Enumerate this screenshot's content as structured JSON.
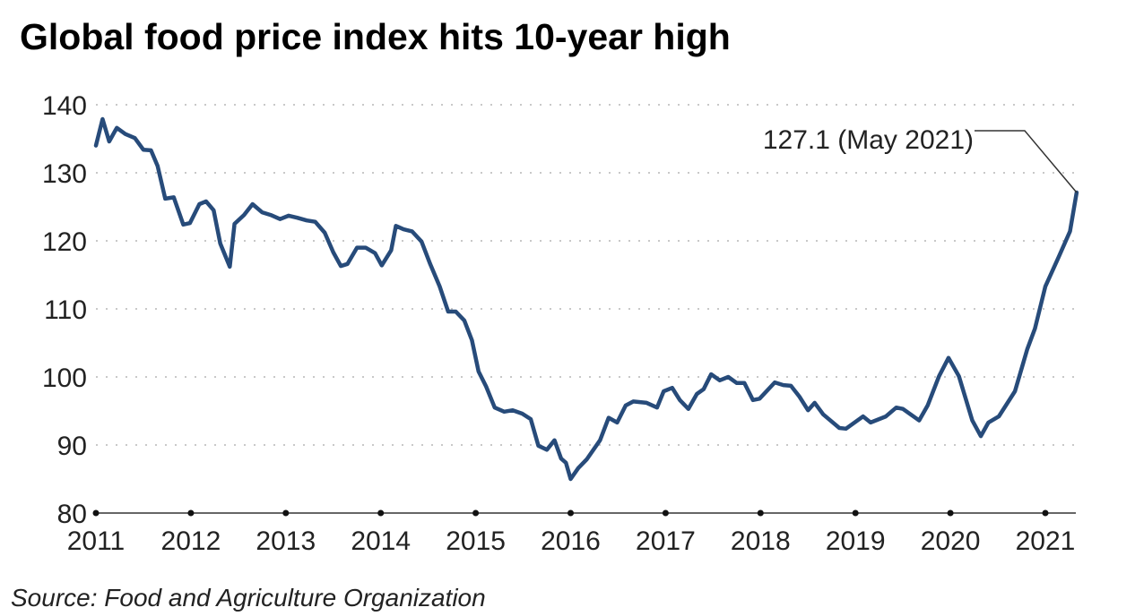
{
  "chart_data": {
    "type": "line",
    "title": "Global food price index hits 10-year high",
    "xlabel": "",
    "ylabel": "",
    "source": "Source: Food and Agriculture Organization",
    "ylim": [
      80,
      140
    ],
    "xlim": [
      2011,
      2021.33
    ],
    "yticks": [
      80,
      90,
      100,
      110,
      120,
      130,
      140
    ],
    "xticks": [
      2011,
      2012,
      2013,
      2014,
      2015,
      2016,
      2017,
      2018,
      2019,
      2020,
      2021
    ],
    "grid": "horizontal dotted",
    "line_color": "#274b7a",
    "annotation": {
      "text": "127.1 (May 2021)",
      "x": 2021.33,
      "y": 127.1
    },
    "series": [
      {
        "name": "Food price index",
        "points": [
          [
            2011.0,
            134
          ],
          [
            2011.07,
            137.9
          ],
          [
            2011.14,
            134.6
          ],
          [
            2011.22,
            136.6
          ],
          [
            2011.31,
            135.7
          ],
          [
            2011.41,
            135.1
          ],
          [
            2011.5,
            133.4
          ],
          [
            2011.58,
            133.3
          ],
          [
            2011.65,
            131
          ],
          [
            2011.73,
            126.2
          ],
          [
            2011.82,
            126.4
          ],
          [
            2011.92,
            122.4
          ],
          [
            2011.99,
            122.6
          ],
          [
            2012.09,
            125.4
          ],
          [
            2012.16,
            125.8
          ],
          [
            2012.24,
            124.5
          ],
          [
            2012.31,
            119.6
          ],
          [
            2012.41,
            116.2
          ],
          [
            2012.46,
            122.5
          ],
          [
            2012.56,
            123.8
          ],
          [
            2012.65,
            125.4
          ],
          [
            2012.75,
            124.2
          ],
          [
            2012.84,
            123.8
          ],
          [
            2012.94,
            123.2
          ],
          [
            2013.03,
            123.7
          ],
          [
            2013.12,
            123.4
          ],
          [
            2013.22,
            123
          ],
          [
            2013.31,
            122.8
          ],
          [
            2013.41,
            121.2
          ],
          [
            2013.5,
            118.3
          ],
          [
            2013.58,
            116.3
          ],
          [
            2013.65,
            116.6
          ],
          [
            2013.75,
            119
          ],
          [
            2013.84,
            119
          ],
          [
            2013.94,
            118.2
          ],
          [
            2014.01,
            116.4
          ],
          [
            2014.11,
            118.6
          ],
          [
            2014.16,
            122.2
          ],
          [
            2014.24,
            121.7
          ],
          [
            2014.33,
            121.4
          ],
          [
            2014.43,
            119.9
          ],
          [
            2014.52,
            116.6
          ],
          [
            2014.62,
            113.3
          ],
          [
            2014.71,
            109.6
          ],
          [
            2014.79,
            109.6
          ],
          [
            2014.88,
            108.3
          ],
          [
            2014.96,
            105.4
          ],
          [
            2015.03,
            100.8
          ],
          [
            2015.11,
            98.6
          ],
          [
            2015.2,
            95.5
          ],
          [
            2015.3,
            94.9
          ],
          [
            2015.39,
            95.1
          ],
          [
            2015.49,
            94.6
          ],
          [
            2015.58,
            93.8
          ],
          [
            2015.66,
            89.9
          ],
          [
            2015.75,
            89.3
          ],
          [
            2015.83,
            90.7
          ],
          [
            2015.9,
            88
          ],
          [
            2015.95,
            87.4
          ],
          [
            2016.0,
            85
          ],
          [
            2016.08,
            86.6
          ],
          [
            2016.17,
            87.9
          ],
          [
            2016.31,
            90.7
          ],
          [
            2016.4,
            94
          ],
          [
            2016.49,
            93.3
          ],
          [
            2016.58,
            95.8
          ],
          [
            2016.66,
            96.4
          ],
          [
            2016.8,
            96.2
          ],
          [
            2016.91,
            95.5
          ],
          [
            2016.98,
            97.9
          ],
          [
            2017.07,
            98.4
          ],
          [
            2017.15,
            96.6
          ],
          [
            2017.24,
            95.3
          ],
          [
            2017.33,
            97.5
          ],
          [
            2017.4,
            98.2
          ],
          [
            2017.48,
            100.4
          ],
          [
            2017.57,
            99.5
          ],
          [
            2017.66,
            100
          ],
          [
            2017.75,
            99.1
          ],
          [
            2017.83,
            99.1
          ],
          [
            2017.92,
            96.6
          ],
          [
            2017.99,
            96.8
          ],
          [
            2018.15,
            99.2
          ],
          [
            2018.24,
            98.8
          ],
          [
            2018.32,
            98.7
          ],
          [
            2018.41,
            97.1
          ],
          [
            2018.5,
            95.1
          ],
          [
            2018.57,
            96.2
          ],
          [
            2018.66,
            94.5
          ],
          [
            2018.83,
            92.5
          ],
          [
            2018.9,
            92.4
          ],
          [
            2019.08,
            94.2
          ],
          [
            2019.16,
            93.3
          ],
          [
            2019.32,
            94.2
          ],
          [
            2019.43,
            95.5
          ],
          [
            2019.5,
            95.3
          ],
          [
            2019.67,
            93.6
          ],
          [
            2019.76,
            95.8
          ],
          [
            2019.88,
            100.1
          ],
          [
            2019.98,
            102.8
          ],
          [
            2020.09,
            100.1
          ],
          [
            2020.23,
            93.6
          ],
          [
            2020.32,
            91.3
          ],
          [
            2020.4,
            93.3
          ],
          [
            2020.51,
            94.2
          ],
          [
            2020.68,
            97.9
          ],
          [
            2020.81,
            104.1
          ],
          [
            2020.89,
            107.1
          ],
          [
            2021.0,
            113.3
          ],
          [
            2021.14,
            117.6
          ],
          [
            2021.26,
            121.4
          ],
          [
            2021.33,
            127.1
          ]
        ]
      }
    ]
  }
}
